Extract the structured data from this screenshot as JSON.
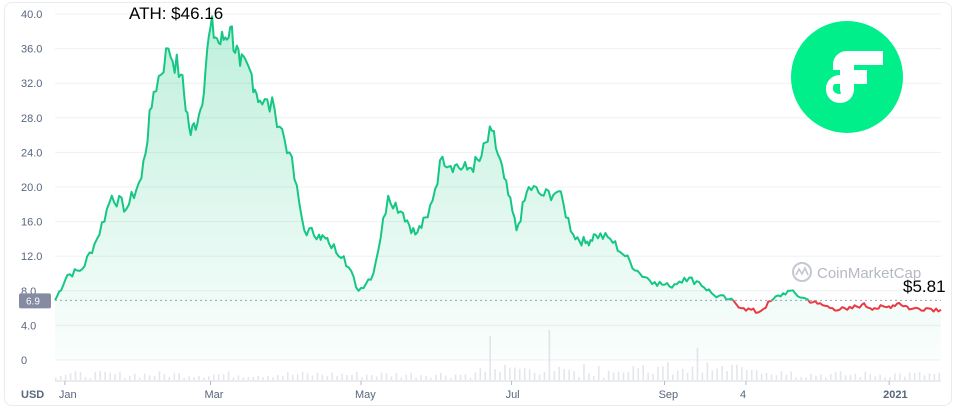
{
  "chart_data": {
    "type": "area",
    "currency_label": "USD",
    "y_ticks": [
      "40.0",
      "36.0",
      "32.0",
      "28.0",
      "24.0",
      "20.0",
      "16.0",
      "12.0",
      "8.0",
      "4.0",
      "0"
    ],
    "ylim": [
      0,
      40
    ],
    "x_ticks": [
      "Jan",
      "Mar",
      "May",
      "Jul",
      "Sep",
      "4",
      "2021"
    ],
    "x_range": [
      "2020-12-28",
      "2021-12-22"
    ],
    "ath_label": "ATH: $46.16",
    "current_label": "$5.81",
    "current_price_badge": "6.9",
    "reference_price": 6.9,
    "watermark": "CoinMarketCap",
    "logo": "flow-logo",
    "colors": {
      "line_up": "#16c784",
      "line_down": "#ea3943",
      "area_fill": "#16c784",
      "logo_bg": "#00ef8b"
    },
    "grid": true,
    "series": [
      {
        "x": [
          "2020-12-28",
          "2021-01-02",
          "2021-01-08",
          "2021-01-14",
          "2021-01-20",
          "2021-01-26",
          "2021-02-01",
          "2021-02-06",
          "2021-02-12",
          "2021-02-17",
          "2021-02-21",
          "2021-02-25",
          "2021-03-01",
          "2021-03-05",
          "2021-03-09",
          "2021-03-13",
          "2021-03-17",
          "2021-03-21",
          "2021-03-27",
          "2021-04-02",
          "2021-04-08",
          "2021-04-14",
          "2021-04-18",
          "2021-04-24",
          "2021-04-30",
          "2021-05-06",
          "2021-05-12",
          "2021-05-18",
          "2021-05-23",
          "2021-05-28",
          "2021-06-03",
          "2021-06-08",
          "2021-06-13",
          "2021-06-18",
          "2021-06-23",
          "2021-06-28",
          "2021-07-03",
          "2021-07-08",
          "2021-07-14",
          "2021-07-20",
          "2021-07-26",
          "2021-07-31",
          "2021-08-04",
          "2021-08-10",
          "2021-08-16",
          "2021-08-22",
          "2021-08-28",
          "2021-09-03",
          "2021-09-09",
          "2021-09-15",
          "2021-09-21",
          "2021-09-27",
          "2021-10-03",
          "2021-10-09",
          "2021-10-15",
          "2021-10-21",
          "2021-10-27",
          "2021-11-02",
          "2021-11-08",
          "2021-11-14",
          "2021-11-20",
          "2021-11-25",
          "2021-11-30",
          "2021-12-05",
          "2021-12-10",
          "2021-12-16",
          "2021-12-22"
        ],
        "values": [
          6.9,
          9.8,
          10.5,
          14.0,
          19.0,
          17.5,
          21.0,
          31.0,
          36.0,
          33.0,
          26.0,
          29.0,
          38.5,
          36.5,
          38.5,
          34.0,
          33.5,
          30.0,
          29.0,
          24.0,
          15.0,
          14.5,
          13.5,
          12.0,
          8.0,
          10.0,
          19.0,
          17.0,
          14.5,
          16.5,
          23.5,
          22.5,
          22.0,
          23.0,
          26.5,
          21.0,
          15.0,
          20.0,
          19.0,
          19.5,
          14.5,
          13.5,
          14.5,
          14.0,
          12.0,
          10.0,
          9.0,
          8.5,
          9.5,
          9.0,
          7.5,
          7.0,
          6.0,
          5.5,
          7.0,
          8.0,
          7.2,
          6.5,
          6.0,
          5.8,
          6.4,
          6.0,
          6.1,
          6.6,
          5.9,
          6.0,
          5.81
        ]
      }
    ]
  }
}
